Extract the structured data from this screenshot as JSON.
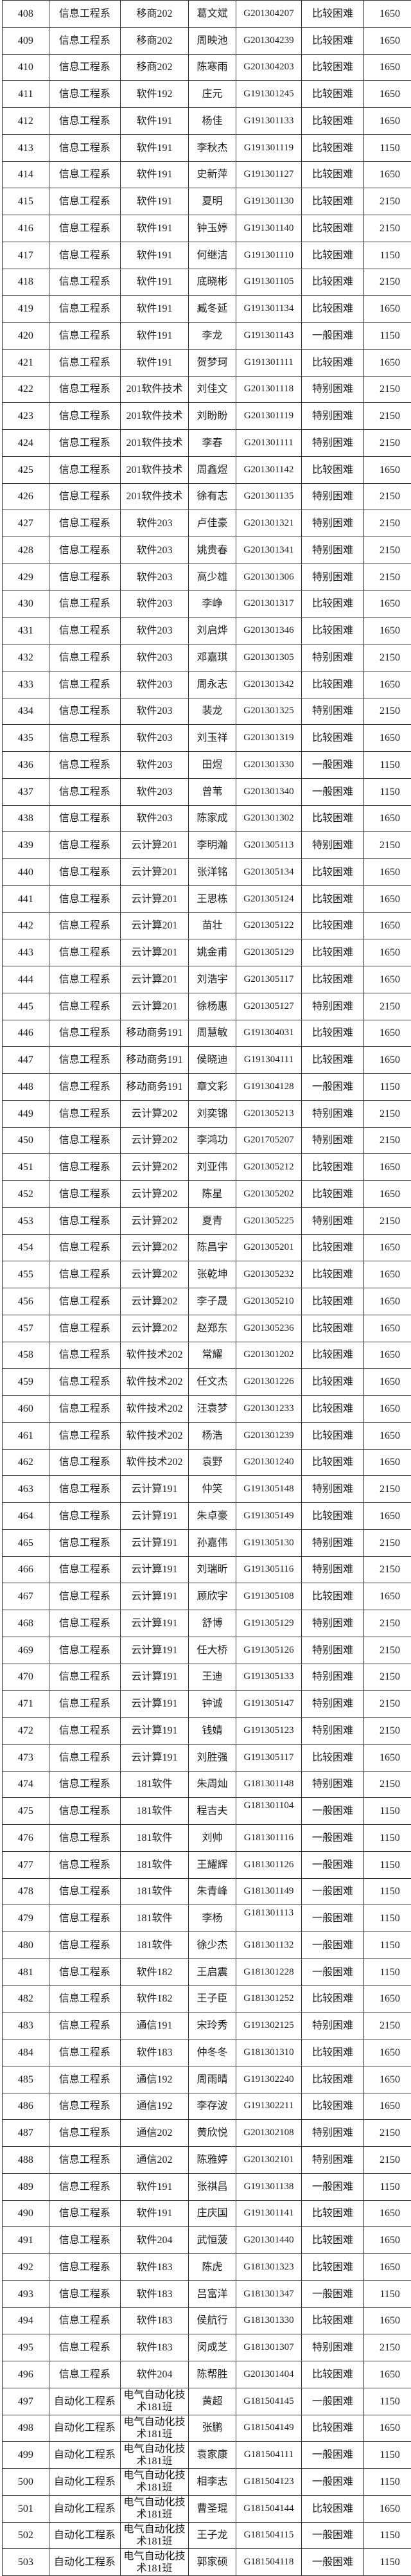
{
  "table": {
    "fields": [
      "row_no",
      "department",
      "class_name",
      "student_name",
      "student_id",
      "difficulty_level",
      "amount"
    ],
    "sid_top_row_numbers": [
      "475",
      "479"
    ],
    "text_color": "#1c1c1c",
    "border_color": "#333333",
    "background_color": "#ffffff",
    "rows": [
      [
        "408",
        "信息工程系",
        "移商202",
        "葛文斌",
        "G201304207",
        "比较困难",
        "1650"
      ],
      [
        "409",
        "信息工程系",
        "移商202",
        "周映池",
        "G201304239",
        "比较困难",
        "1650"
      ],
      [
        "410",
        "信息工程系",
        "移商202",
        "陈寒雨",
        "G201304203",
        "比较困难",
        "1650"
      ],
      [
        "411",
        "信息工程系",
        "软件192",
        "庄元",
        "G191301245",
        "比较困难",
        "1650"
      ],
      [
        "412",
        "信息工程系",
        "软件191",
        "杨佳",
        "G191301133",
        "比较困难",
        "1650"
      ],
      [
        "413",
        "信息工程系",
        "软件191",
        "李秋杰",
        "G191301119",
        "比较困难",
        "1150"
      ],
      [
        "414",
        "信息工程系",
        "软件191",
        "史新萍",
        "G191301127",
        "比较困难",
        "1650"
      ],
      [
        "415",
        "信息工程系",
        "软件191",
        "夏明",
        "G191301130",
        "比较困难",
        "2150"
      ],
      [
        "416",
        "信息工程系",
        "软件191",
        "钟玉婷",
        "G191301140",
        "比较困难",
        "2150"
      ],
      [
        "417",
        "信息工程系",
        "软件191",
        "何继洁",
        "G191301110",
        "比较困难",
        "1150"
      ],
      [
        "418",
        "信息工程系",
        "软件191",
        "底晓彬",
        "G191301105",
        "比较困难",
        "2150"
      ],
      [
        "419",
        "信息工程系",
        "软件191",
        "臧冬延",
        "G191301134",
        "比较困难",
        "1650"
      ],
      [
        "420",
        "信息工程系",
        "软件191",
        "李龙",
        "G191301143",
        "一般困难",
        "1150"
      ],
      [
        "421",
        "信息工程系",
        "软件191",
        "贺梦珂",
        "G191301111",
        "比较困难",
        "1650"
      ],
      [
        "422",
        "信息工程系",
        "201软件技术",
        "刘佳文",
        "G201301118",
        "特别困难",
        "2150"
      ],
      [
        "423",
        "信息工程系",
        "201软件技术",
        "刘盼盼",
        "G201301119",
        "特别困难",
        "2150"
      ],
      [
        "424",
        "信息工程系",
        "201软件技术",
        "李春",
        "G201301111",
        "特别困难",
        "2150"
      ],
      [
        "425",
        "信息工程系",
        "201软件技术",
        "周鑫煜",
        "G201301142",
        "比较困难",
        "1650"
      ],
      [
        "426",
        "信息工程系",
        "201软件技术",
        "徐有志",
        "G201301135",
        "特别困难",
        "2150"
      ],
      [
        "427",
        "信息工程系",
        "软件203",
        "卢佳豪",
        "G201301321",
        "特别困难",
        "2150"
      ],
      [
        "428",
        "信息工程系",
        "软件203",
        "姚贵春",
        "G201301341",
        "特别困难",
        "2150"
      ],
      [
        "429",
        "信息工程系",
        "软件203",
        "高少雄",
        "G201301306",
        "特别困难",
        "2150"
      ],
      [
        "430",
        "信息工程系",
        "软件203",
        "李峥",
        "G201301317",
        "比较困难",
        "1650"
      ],
      [
        "431",
        "信息工程系",
        "软件203",
        "刘启烨",
        "G201301346",
        "比较困难",
        "1650"
      ],
      [
        "432",
        "信息工程系",
        "软件203",
        "邓嘉琪",
        "G201301305",
        "特别困难",
        "2150"
      ],
      [
        "433",
        "信息工程系",
        "软件203",
        "周永志",
        "G201301342",
        "比较困难",
        "1650"
      ],
      [
        "434",
        "信息工程系",
        "软件203",
        "裴龙",
        "G201301325",
        "特别困难",
        "2150"
      ],
      [
        "435",
        "信息工程系",
        "软件203",
        "刘玉祥",
        "G201301319",
        "比较困难",
        "1650"
      ],
      [
        "436",
        "信息工程系",
        "软件203",
        "田煜",
        "G201301330",
        "一般困难",
        "1150"
      ],
      [
        "437",
        "信息工程系",
        "软件203",
        "曾苇",
        "G201301340",
        "一般困难",
        "1150"
      ],
      [
        "438",
        "信息工程系",
        "软件203",
        "陈家成",
        "G201301302",
        "比较困难",
        "1650"
      ],
      [
        "439",
        "信息工程系",
        "云计算201",
        "李明瀚",
        "G201305113",
        "特别困难",
        "2150"
      ],
      [
        "440",
        "信息工程系",
        "云计算201",
        "张洋铭",
        "G201305134",
        "比较困难",
        "1650"
      ],
      [
        "441",
        "信息工程系",
        "云计算201",
        "王思栋",
        "G201305124",
        "比较困难",
        "1650"
      ],
      [
        "442",
        "信息工程系",
        "云计算201",
        "苗壮",
        "G201305122",
        "比较困难",
        "1650"
      ],
      [
        "443",
        "信息工程系",
        "云计算201",
        "姚金甫",
        "G201305129",
        "比较困难",
        "1650"
      ],
      [
        "444",
        "信息工程系",
        "云计算201",
        "刘浩宇",
        "G201305117",
        "比较困难",
        "1650"
      ],
      [
        "445",
        "信息工程系",
        "云计算201",
        "徐杨惠",
        "G201305127",
        "特别困难",
        "2150"
      ],
      [
        "446",
        "信息工程系",
        "移动商务191",
        "周慧敏",
        "G191304031",
        "比较困难",
        "1650"
      ],
      [
        "447",
        "信息工程系",
        "移动商务191",
        "侯晓迪",
        "G191304111",
        "比较困难",
        "1650"
      ],
      [
        "448",
        "信息工程系",
        "移动商务191",
        "章文彩",
        "G191304128",
        "一般困难",
        "1150"
      ],
      [
        "449",
        "信息工程系",
        "云计算202",
        "刘奕锦",
        "G201305213",
        "特别困难",
        "2150"
      ],
      [
        "450",
        "信息工程系",
        "云计算202",
        "李鸿功",
        "G201705207",
        "特别困难",
        "2150"
      ],
      [
        "451",
        "信息工程系",
        "云计算202",
        "刘亚伟",
        "G201305212",
        "比较困难",
        "1650"
      ],
      [
        "452",
        "信息工程系",
        "云计算202",
        "陈星",
        "G201305202",
        "比较困难",
        "1650"
      ],
      [
        "453",
        "信息工程系",
        "云计算202",
        "夏青",
        "G201305225",
        "特别困难",
        "2150"
      ],
      [
        "454",
        "信息工程系",
        "云计算202",
        "陈昌宇",
        "G201305201",
        "比较困难",
        "1650"
      ],
      [
        "455",
        "信息工程系",
        "云计算202",
        "张乾坤",
        "G201305232",
        "比较困难",
        "1650"
      ],
      [
        "456",
        "信息工程系",
        "云计算202",
        "李子晟",
        "G201305210",
        "比较困难",
        "1650"
      ],
      [
        "457",
        "信息工程系",
        "云计算202",
        "赵郑东",
        "G201305236",
        "比较困难",
        "1650"
      ],
      [
        "458",
        "信息工程系",
        "软件技术202",
        "常耀",
        "G201301202",
        "比较困难",
        "1650"
      ],
      [
        "459",
        "信息工程系",
        "软件技术202",
        "任文杰",
        "G201301226",
        "比较困难",
        "1650"
      ],
      [
        "460",
        "信息工程系",
        "软件技术202",
        "汪袁梦",
        "G201301233",
        "比较困难",
        "1650"
      ],
      [
        "461",
        "信息工程系",
        "软件技术202",
        "杨浩",
        "G201301239",
        "比较困难",
        "1650"
      ],
      [
        "462",
        "信息工程系",
        "软件技术202",
        "袁野",
        "G201301240",
        "比较困难",
        "1650"
      ],
      [
        "463",
        "信息工程系",
        "云计算191",
        "仲笑",
        "G191305148",
        "特别困难",
        "2150"
      ],
      [
        "464",
        "信息工程系",
        "云计算191",
        "朱卓豪",
        "G191305149",
        "比较困难",
        "1650"
      ],
      [
        "465",
        "信息工程系",
        "云计算191",
        "孙嘉伟",
        "G191305130",
        "特别困难",
        "2150"
      ],
      [
        "466",
        "信息工程系",
        "云计算191",
        "刘瑞昕",
        "G191305116",
        "特别困难",
        "2150"
      ],
      [
        "467",
        "信息工程系",
        "云计算191",
        "顾欣宇",
        "G191305108",
        "比较困难",
        "1650"
      ],
      [
        "468",
        "信息工程系",
        "云计算191",
        "舒博",
        "G191305129",
        "特别困难",
        "2150"
      ],
      [
        "469",
        "信息工程系",
        "云计算191",
        "任大桥",
        "G191305126",
        "特别困难",
        "2150"
      ],
      [
        "470",
        "信息工程系",
        "云计算191",
        "王迪",
        "G191305133",
        "特别困难",
        "2150"
      ],
      [
        "471",
        "信息工程系",
        "云计算191",
        "钟诚",
        "G191305147",
        "特别困难",
        "2150"
      ],
      [
        "472",
        "信息工程系",
        "云计算191",
        "钱婧",
        "G191305123",
        "特别困难",
        "2150"
      ],
      [
        "473",
        "信息工程系",
        "云计算191",
        "刘胜强",
        "G191305117",
        "比较困难",
        "1650"
      ],
      [
        "474",
        "信息工程系",
        "181软件",
        "朱周灿",
        "G181301148",
        "特别困难",
        "2150"
      ],
      [
        "475",
        "信息工程系",
        "181软件",
        "程吉夫",
        "G181301104",
        "一般困难",
        "1150"
      ],
      [
        "476",
        "信息工程系",
        "181软件",
        "刘帅",
        "G181301116",
        "一般困难",
        "1150"
      ],
      [
        "477",
        "信息工程系",
        "181软件",
        "王耀辉",
        "G181301126",
        "一般困难",
        "1150"
      ],
      [
        "478",
        "信息工程系",
        "181软件",
        "朱青峰",
        "G181301149",
        "一般困难",
        "1150"
      ],
      [
        "479",
        "信息工程系",
        "181软件",
        "李杨",
        "G181301113",
        "一般困难",
        "1150"
      ],
      [
        "480",
        "信息工程系",
        "181软件",
        "徐少杰",
        "G181301132",
        "一般困难",
        "1150"
      ],
      [
        "481",
        "信息工程系",
        "软件182",
        "王启震",
        "G181301228",
        "一般困难",
        "1150"
      ],
      [
        "482",
        "信息工程系",
        "软件182",
        "王子臣",
        "G181301252",
        "比较困难",
        "1650"
      ],
      [
        "483",
        "信息工程系",
        "通信191",
        "宋玲秀",
        "G191302125",
        "特别困难",
        "2150"
      ],
      [
        "484",
        "信息工程系",
        "软件183",
        "仲冬冬",
        "G181301310",
        "比较困难",
        "1650"
      ],
      [
        "485",
        "信息工程系",
        "通信192",
        "周雨晴",
        "G191302240",
        "比较困难",
        "1650"
      ],
      [
        "486",
        "信息工程系",
        "通信192",
        "李存波",
        "G191302211",
        "比较困难",
        "1650"
      ],
      [
        "487",
        "信息工程系",
        "通信202",
        "黄欣悦",
        "G201302108",
        "特别困难",
        "2150"
      ],
      [
        "488",
        "信息工程系",
        "通信202",
        "陈雅婷",
        "G201302101",
        "特别困难",
        "2150"
      ],
      [
        "489",
        "信息工程系",
        "软件191",
        "张祺昌",
        "G191301138",
        "一般困难",
        "1150"
      ],
      [
        "490",
        "信息工程系",
        "软件191",
        "庄庆国",
        "G191301141",
        "比较困难",
        "1650"
      ],
      [
        "491",
        "信息工程系",
        "软件204",
        "武恒菠",
        "G201301440",
        "比较困难",
        "1650"
      ],
      [
        "492",
        "信息工程系",
        "软件183",
        "陈虎",
        "G181301323",
        "比较困难",
        "1650"
      ],
      [
        "493",
        "信息工程系",
        "软件183",
        "吕富洋",
        "G181301347",
        "一般困难",
        "1150"
      ],
      [
        "494",
        "信息工程系",
        "软件183",
        "侯航行",
        "G181301330",
        "比较困难",
        "1650"
      ],
      [
        "495",
        "信息工程系",
        "软件183",
        "闵成芝",
        "G181301307",
        "特别困难",
        "2150"
      ],
      [
        "496",
        "信息工程系",
        "软件204",
        "陈帮胜",
        "G201301404",
        "比较困难",
        "1650"
      ],
      [
        "497",
        "自动化工程系",
        "电气自动化技术181班",
        "黄超",
        "G181504145",
        "一般困难",
        "1150"
      ],
      [
        "498",
        "自动化工程系",
        "电气自动化技术181班",
        "张鹏",
        "G181504149",
        "比较困难",
        "1650"
      ],
      [
        "499",
        "自动化工程系",
        "电气自动化技术181班",
        "袁家康",
        "G181504111",
        "一般困难",
        "1150"
      ],
      [
        "500",
        "自动化工程系",
        "电气自动化技术181班",
        "相李志",
        "G181504123",
        "一般困难",
        "1150"
      ],
      [
        "501",
        "自动化工程系",
        "电气自动化技术181班",
        "曹圣琨",
        "G181504144",
        "比较困难",
        "1650"
      ],
      [
        "502",
        "自动化工程系",
        "电气自动化技术181班",
        "王子龙",
        "G181504115",
        "一般困难",
        "1150"
      ],
      [
        "503",
        "自动化工程系",
        "电气自动化技术181班",
        "郭家硕",
        "G181504118",
        "一般困难",
        "1150"
      ]
    ]
  }
}
